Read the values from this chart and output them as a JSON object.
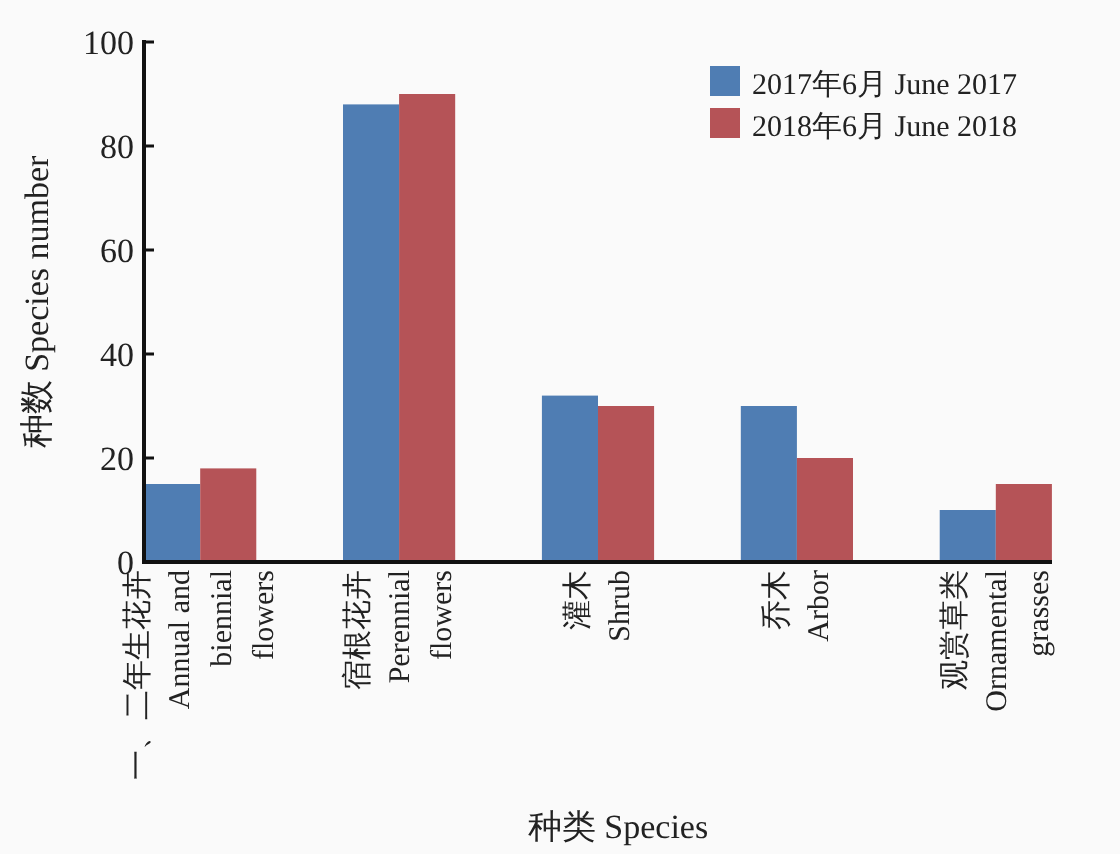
{
  "chart_data": {
    "type": "bar",
    "xlabel": "种类 Species",
    "ylabel": "种数 Species number",
    "categories": [
      "一、二年生花卉\nAnnual and\nbiennial\nflowers",
      "宿根花卉\nPerennial\nflowers",
      "灌木\nShrub",
      "乔木\nArbor",
      "观赏草类\nOrnamental\ngrasses"
    ],
    "series": [
      {
        "name": "2017年6月 June 2017",
        "color": "#4f7db3",
        "values": [
          15,
          88,
          32,
          30,
          10
        ]
      },
      {
        "name": "2018年6月 June 2018",
        "color": "#b55357",
        "values": [
          18,
          90,
          30,
          20,
          15
        ]
      }
    ],
    "ylim": [
      0,
      100
    ],
    "yticks": [
      0,
      20,
      40,
      60,
      80,
      100
    ],
    "legend": "top right",
    "grid": false
  }
}
